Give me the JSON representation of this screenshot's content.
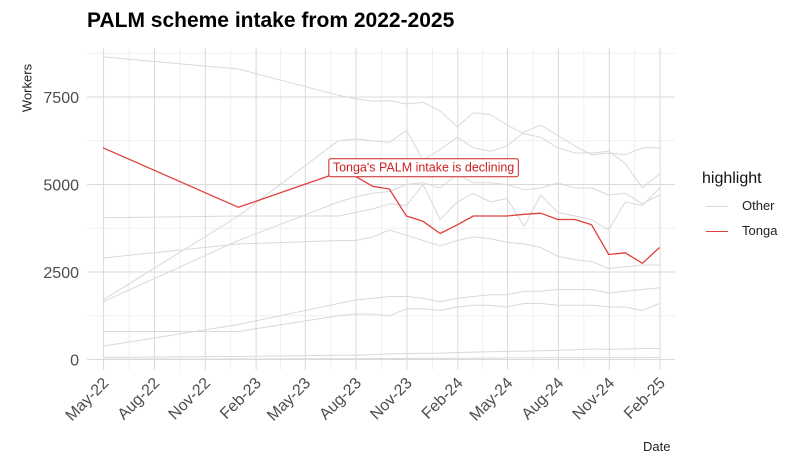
{
  "chart_data": {
    "type": "line",
    "title": "PALM scheme intake from 2022-2025",
    "xlabel": "Date",
    "ylabel": "Workers",
    "x_tick_labels": [
      "May-22",
      "Aug-22",
      "Nov-22",
      "Feb-23",
      "May-23",
      "Aug-23",
      "Nov-23",
      "Feb-24",
      "May-24",
      "Aug-24",
      "Nov-24",
      "Feb-25"
    ],
    "x_tick_dates": [
      "2022-05-01",
      "2022-08-01",
      "2022-11-01",
      "2023-02-01",
      "2023-05-01",
      "2023-08-01",
      "2023-11-01",
      "2024-02-01",
      "2024-05-01",
      "2024-08-01",
      "2024-11-01",
      "2025-02-01"
    ],
    "xlim": [
      "2022-04-01",
      "2025-02-28"
    ],
    "y_ticks": [
      0,
      2500,
      5000,
      7500
    ],
    "y_tick_labels": [
      "0",
      "2500",
      "5000",
      "7500"
    ],
    "ylim": [
      -300,
      8900
    ],
    "grid": true,
    "legend": {
      "title": "highlight",
      "position": "right",
      "entries": [
        {
          "label": "Other",
          "color": "#d9d9d9"
        },
        {
          "label": "Tonga",
          "color": "#e0403b"
        }
      ]
    },
    "annotation": {
      "text": "Tonga's PALM intake is declining",
      "x": "2023-12-01",
      "y": 5480,
      "color": "#cc2222"
    },
    "series": [
      {
        "name": "Tonga",
        "highlight": "Tonga",
        "color": "#e0403b",
        "points": [
          [
            "2022-04-30",
            6050
          ],
          [
            "2022-12-31",
            4350
          ],
          [
            "2023-06-30",
            5340
          ],
          [
            "2023-07-31",
            5230
          ],
          [
            "2023-08-31",
            4950
          ],
          [
            "2023-09-30",
            4870
          ],
          [
            "2023-10-31",
            4100
          ],
          [
            "2023-11-30",
            3950
          ],
          [
            "2023-12-31",
            3600
          ],
          [
            "2024-01-31",
            3850
          ],
          [
            "2024-02-29",
            4100
          ],
          [
            "2024-03-31",
            4100
          ],
          [
            "2024-04-30",
            4100
          ],
          [
            "2024-05-31",
            4150
          ],
          [
            "2024-06-30",
            4180
          ],
          [
            "2024-07-31",
            4000
          ],
          [
            "2024-08-31",
            4000
          ],
          [
            "2024-09-30",
            3850
          ],
          [
            "2024-10-31",
            3000
          ],
          [
            "2024-11-30",
            3050
          ],
          [
            "2024-12-31",
            2750
          ],
          [
            "2025-01-31",
            3200
          ]
        ]
      },
      {
        "highlight": "Other",
        "color": "#d9d9d9",
        "points": [
          [
            "2022-04-30",
            8650
          ],
          [
            "2022-12-31",
            8300
          ],
          [
            "2023-06-30",
            7550
          ],
          [
            "2023-07-31",
            7450
          ],
          [
            "2023-08-31",
            7380
          ],
          [
            "2023-09-30",
            7400
          ],
          [
            "2023-10-31",
            7300
          ],
          [
            "2023-11-30",
            7350
          ],
          [
            "2023-12-31",
            7100
          ],
          [
            "2024-01-31",
            6650
          ],
          [
            "2024-02-29",
            7050
          ],
          [
            "2024-03-31",
            7000
          ],
          [
            "2024-04-30",
            6700
          ],
          [
            "2024-05-31",
            6450
          ],
          [
            "2024-06-30",
            6350
          ],
          [
            "2024-07-31",
            6050
          ],
          [
            "2024-08-31",
            5900
          ],
          [
            "2024-09-30",
            5900
          ],
          [
            "2024-10-31",
            5950
          ],
          [
            "2024-11-30",
            5600
          ],
          [
            "2024-12-31",
            4900
          ],
          [
            "2025-01-31",
            5300
          ]
        ]
      },
      {
        "highlight": "Other",
        "color": "#d9d9d9",
        "points": [
          [
            "2022-04-30",
            1700
          ],
          [
            "2022-12-31",
            4100
          ],
          [
            "2023-06-30",
            6250
          ],
          [
            "2023-07-31",
            6300
          ],
          [
            "2023-08-31",
            6250
          ],
          [
            "2023-09-30",
            6200
          ],
          [
            "2023-10-31",
            6550
          ],
          [
            "2023-11-30",
            5700
          ],
          [
            "2023-12-31",
            6000
          ],
          [
            "2024-01-31",
            6350
          ],
          [
            "2024-02-29",
            6050
          ],
          [
            "2024-03-31",
            5950
          ],
          [
            "2024-04-30",
            6100
          ],
          [
            "2024-05-31",
            6500
          ],
          [
            "2024-06-30",
            6700
          ],
          [
            "2024-07-31",
            6400
          ],
          [
            "2024-08-31",
            6100
          ],
          [
            "2024-09-30",
            5850
          ],
          [
            "2024-10-31",
            5900
          ],
          [
            "2024-11-30",
            5850
          ],
          [
            "2024-12-31",
            6050
          ],
          [
            "2025-01-31",
            6050
          ]
        ]
      },
      {
        "highlight": "Other",
        "color": "#d9d9d9",
        "points": [
          [
            "2022-04-30",
            1650
          ],
          [
            "2022-12-31",
            3400
          ],
          [
            "2023-06-30",
            4500
          ],
          [
            "2023-07-31",
            4650
          ],
          [
            "2023-08-31",
            4750
          ],
          [
            "2023-09-30",
            4800
          ],
          [
            "2023-10-31",
            5000
          ],
          [
            "2023-11-30",
            5050
          ],
          [
            "2023-12-31",
            4900
          ],
          [
            "2024-01-31",
            5300
          ],
          [
            "2024-02-29",
            5050
          ],
          [
            "2024-03-31",
            5050
          ],
          [
            "2024-04-30",
            5000
          ],
          [
            "2024-05-31",
            4850
          ],
          [
            "2024-06-30",
            4900
          ],
          [
            "2024-07-31",
            5050
          ],
          [
            "2024-08-31",
            4900
          ],
          [
            "2024-09-30",
            4900
          ],
          [
            "2024-10-31",
            4700
          ],
          [
            "2024-11-30",
            4750
          ],
          [
            "2024-12-31",
            4450
          ],
          [
            "2025-01-31",
            4700
          ]
        ]
      },
      {
        "highlight": "Other",
        "color": "#d9d9d9",
        "points": [
          [
            "2022-04-30",
            4050
          ],
          [
            "2022-12-31",
            4100
          ],
          [
            "2023-06-30",
            4100
          ],
          [
            "2023-07-31",
            4200
          ],
          [
            "2023-08-31",
            4300
          ],
          [
            "2023-09-30",
            4450
          ],
          [
            "2023-10-31",
            4400
          ],
          [
            "2023-11-30",
            5000
          ],
          [
            "2023-12-31",
            4000
          ],
          [
            "2024-01-31",
            4500
          ],
          [
            "2024-02-29",
            4750
          ],
          [
            "2024-03-31",
            4500
          ],
          [
            "2024-04-30",
            4600
          ],
          [
            "2024-05-31",
            3800
          ],
          [
            "2024-06-30",
            4700
          ],
          [
            "2024-07-31",
            4200
          ],
          [
            "2024-08-31",
            4100
          ],
          [
            "2024-09-30",
            4000
          ],
          [
            "2024-10-31",
            3700
          ],
          [
            "2024-11-30",
            4500
          ],
          [
            "2024-12-31",
            4400
          ],
          [
            "2025-01-31",
            4900
          ]
        ]
      },
      {
        "highlight": "Other",
        "color": "#d9d9d9",
        "points": [
          [
            "2022-04-30",
            2900
          ],
          [
            "2022-12-31",
            3300
          ],
          [
            "2023-06-30",
            3400
          ],
          [
            "2023-07-31",
            3400
          ],
          [
            "2023-08-31",
            3500
          ],
          [
            "2023-09-30",
            3700
          ],
          [
            "2023-10-31",
            3550
          ],
          [
            "2023-11-30",
            3400
          ],
          [
            "2023-12-31",
            3250
          ],
          [
            "2024-01-31",
            3400
          ],
          [
            "2024-02-29",
            3500
          ],
          [
            "2024-03-31",
            3450
          ],
          [
            "2024-04-30",
            3350
          ],
          [
            "2024-05-31",
            3300
          ],
          [
            "2024-06-30",
            3200
          ],
          [
            "2024-07-31",
            2950
          ],
          [
            "2024-08-31",
            2850
          ],
          [
            "2024-09-30",
            2800
          ],
          [
            "2024-10-31",
            2600
          ],
          [
            "2024-11-30",
            2650
          ],
          [
            "2024-12-31",
            2700
          ],
          [
            "2025-01-31",
            2700
          ]
        ]
      },
      {
        "highlight": "Other",
        "color": "#d9d9d9",
        "points": [
          [
            "2022-04-30",
            380
          ],
          [
            "2022-12-31",
            1000
          ],
          [
            "2023-06-30",
            1600
          ],
          [
            "2023-07-31",
            1700
          ],
          [
            "2023-08-31",
            1750
          ],
          [
            "2023-09-30",
            1800
          ],
          [
            "2023-10-31",
            1800
          ],
          [
            "2023-11-30",
            1750
          ],
          [
            "2023-12-31",
            1650
          ],
          [
            "2024-01-31",
            1750
          ],
          [
            "2024-02-29",
            1800
          ],
          [
            "2024-03-31",
            1850
          ],
          [
            "2024-04-30",
            1850
          ],
          [
            "2024-05-31",
            1950
          ],
          [
            "2024-06-30",
            1950
          ],
          [
            "2024-07-31",
            2000
          ],
          [
            "2024-08-31",
            2000
          ],
          [
            "2024-09-30",
            2000
          ],
          [
            "2024-10-31",
            1900
          ],
          [
            "2024-11-30",
            1950
          ],
          [
            "2024-12-31",
            2000
          ],
          [
            "2025-01-31",
            2050
          ]
        ]
      },
      {
        "highlight": "Other",
        "color": "#d9d9d9",
        "points": [
          [
            "2022-04-30",
            800
          ],
          [
            "2022-12-31",
            800
          ],
          [
            "2023-06-30",
            1250
          ],
          [
            "2023-07-31",
            1300
          ],
          [
            "2023-08-31",
            1300
          ],
          [
            "2023-09-30",
            1250
          ],
          [
            "2023-10-31",
            1450
          ],
          [
            "2023-11-30",
            1450
          ],
          [
            "2023-12-31",
            1400
          ],
          [
            "2024-01-31",
            1500
          ],
          [
            "2024-02-29",
            1550
          ],
          [
            "2024-03-31",
            1550
          ],
          [
            "2024-04-30",
            1500
          ],
          [
            "2024-05-31",
            1600
          ],
          [
            "2024-06-30",
            1600
          ],
          [
            "2024-07-31",
            1550
          ],
          [
            "2024-08-31",
            1550
          ],
          [
            "2024-09-30",
            1550
          ],
          [
            "2024-10-31",
            1500
          ],
          [
            "2024-11-30",
            1500
          ],
          [
            "2024-12-31",
            1400
          ],
          [
            "2025-01-31",
            1600
          ]
        ]
      },
      {
        "highlight": "Other",
        "color": "#d9d9d9",
        "points": [
          [
            "2022-04-30",
            60
          ],
          [
            "2022-12-31",
            90
          ],
          [
            "2023-06-30",
            120
          ],
          [
            "2023-07-31",
            120
          ],
          [
            "2023-08-31",
            140
          ],
          [
            "2023-09-30",
            160
          ],
          [
            "2023-10-31",
            170
          ],
          [
            "2023-11-30",
            180
          ],
          [
            "2023-12-31",
            180
          ],
          [
            "2024-01-31",
            200
          ],
          [
            "2024-02-29",
            210
          ],
          [
            "2024-03-31",
            220
          ],
          [
            "2024-04-30",
            230
          ],
          [
            "2024-05-31",
            240
          ],
          [
            "2024-06-30",
            250
          ],
          [
            "2024-07-31",
            260
          ],
          [
            "2024-08-31",
            280
          ],
          [
            "2024-09-30",
            300
          ],
          [
            "2024-10-31",
            290
          ],
          [
            "2024-11-30",
            300
          ],
          [
            "2024-12-31",
            310
          ],
          [
            "2025-01-31",
            310
          ]
        ]
      },
      {
        "highlight": "Other",
        "color": "#d9d9d9",
        "points": [
          [
            "2022-04-30",
            10
          ],
          [
            "2022-12-31",
            15
          ],
          [
            "2023-06-30",
            20
          ],
          [
            "2023-07-31",
            20
          ],
          [
            "2023-08-31",
            25
          ],
          [
            "2023-09-30",
            25
          ],
          [
            "2023-10-31",
            30
          ],
          [
            "2023-11-30",
            30
          ],
          [
            "2023-12-31",
            35
          ],
          [
            "2024-01-31",
            35
          ],
          [
            "2024-02-29",
            40
          ],
          [
            "2024-03-31",
            40
          ],
          [
            "2024-04-30",
            45
          ],
          [
            "2024-05-31",
            45
          ],
          [
            "2024-06-30",
            50
          ],
          [
            "2024-07-31",
            50
          ],
          [
            "2024-08-31",
            50
          ],
          [
            "2024-09-30",
            55
          ],
          [
            "2024-10-31",
            55
          ],
          [
            "2024-11-30",
            55
          ],
          [
            "2024-12-31",
            55
          ],
          [
            "2025-01-31",
            60
          ]
        ]
      }
    ]
  }
}
